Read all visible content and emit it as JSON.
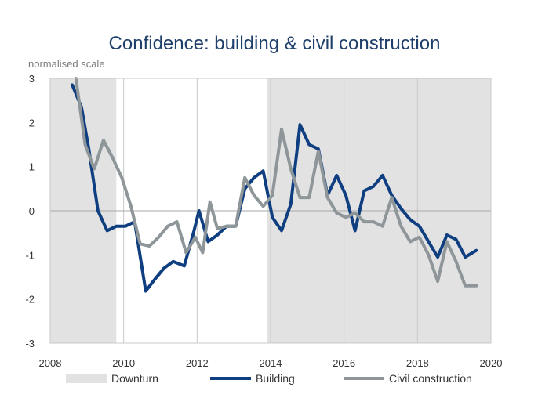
{
  "chart_data": {
    "type": "line",
    "title": "Confidence: building & civil construction",
    "ylabel": "normalised scale",
    "xlim": [
      2008,
      2020
    ],
    "ylim": [
      -3,
      3
    ],
    "x_ticks": [
      "2008",
      "2010",
      "2012",
      "2014",
      "2016",
      "2018",
      "2020"
    ],
    "y_ticks": [
      "3",
      "2",
      "1",
      "0",
      "-1",
      "-2",
      "-3"
    ],
    "grid": "vertical",
    "legend_position": "bottom",
    "shaded_regions": {
      "name": "Downturn",
      "color": "#e2e2e2",
      "ranges": [
        [
          2008,
          2009.8
        ],
        [
          2013.9,
          2020
        ]
      ]
    },
    "series": [
      {
        "name": "Building",
        "color": "#0f3f80",
        "points": [
          [
            2008.6,
            2.85
          ],
          [
            2008.85,
            2.35
          ],
          [
            2009.05,
            1.4
          ],
          [
            2009.3,
            0.0
          ],
          [
            2009.55,
            -0.45
          ],
          [
            2009.8,
            -0.35
          ],
          [
            2010.05,
            -0.35
          ],
          [
            2010.3,
            -0.25
          ],
          [
            2010.6,
            -1.82
          ],
          [
            2010.85,
            -1.55
          ],
          [
            2011.1,
            -1.3
          ],
          [
            2011.35,
            -1.15
          ],
          [
            2011.65,
            -1.25
          ],
          [
            2011.9,
            -0.5
          ],
          [
            2012.05,
            0.0
          ],
          [
            2012.3,
            -0.7
          ],
          [
            2012.55,
            -0.55
          ],
          [
            2012.8,
            -0.35
          ],
          [
            2013.05,
            -0.35
          ],
          [
            2013.3,
            0.5
          ],
          [
            2013.55,
            0.75
          ],
          [
            2013.8,
            0.9
          ],
          [
            2014.05,
            -0.15
          ],
          [
            2014.3,
            -0.45
          ],
          [
            2014.55,
            0.15
          ],
          [
            2014.8,
            1.95
          ],
          [
            2015.05,
            1.5
          ],
          [
            2015.3,
            1.4
          ],
          [
            2015.55,
            0.35
          ],
          [
            2015.8,
            0.8
          ],
          [
            2016.05,
            0.35
          ],
          [
            2016.3,
            -0.45
          ],
          [
            2016.55,
            0.45
          ],
          [
            2016.8,
            0.55
          ],
          [
            2017.05,
            0.8
          ],
          [
            2017.3,
            0.35
          ],
          [
            2017.55,
            0.05
          ],
          [
            2017.8,
            -0.2
          ],
          [
            2018.05,
            -0.35
          ],
          [
            2018.3,
            -0.7
          ],
          [
            2018.55,
            -1.05
          ],
          [
            2018.8,
            -0.55
          ],
          [
            2019.05,
            -0.65
          ],
          [
            2019.3,
            -1.05
          ],
          [
            2019.6,
            -0.9
          ]
        ]
      },
      {
        "name": "Civil construction",
        "color": "#8e9699",
        "points": [
          [
            2008.7,
            3.1
          ],
          [
            2008.95,
            1.5
          ],
          [
            2009.2,
            0.95
          ],
          [
            2009.45,
            1.6
          ],
          [
            2009.7,
            1.2
          ],
          [
            2009.95,
            0.75
          ],
          [
            2010.2,
            0.1
          ],
          [
            2010.45,
            -0.75
          ],
          [
            2010.7,
            -0.8
          ],
          [
            2010.95,
            -0.6
          ],
          [
            2011.2,
            -0.35
          ],
          [
            2011.45,
            -0.25
          ],
          [
            2011.7,
            -0.95
          ],
          [
            2011.95,
            -0.6
          ],
          [
            2012.15,
            -0.95
          ],
          [
            2012.35,
            0.2
          ],
          [
            2012.55,
            -0.4
          ],
          [
            2012.8,
            -0.35
          ],
          [
            2013.05,
            -0.35
          ],
          [
            2013.3,
            0.75
          ],
          [
            2013.55,
            0.35
          ],
          [
            2013.8,
            0.1
          ],
          [
            2014.05,
            0.35
          ],
          [
            2014.3,
            1.85
          ],
          [
            2014.55,
            0.95
          ],
          [
            2014.8,
            0.3
          ],
          [
            2015.05,
            0.3
          ],
          [
            2015.3,
            1.35
          ],
          [
            2015.55,
            0.3
          ],
          [
            2015.8,
            -0.05
          ],
          [
            2016.05,
            -0.15
          ],
          [
            2016.3,
            -0.05
          ],
          [
            2016.55,
            -0.25
          ],
          [
            2016.8,
            -0.25
          ],
          [
            2017.05,
            -0.35
          ],
          [
            2017.3,
            0.3
          ],
          [
            2017.55,
            -0.35
          ],
          [
            2017.8,
            -0.7
          ],
          [
            2018.05,
            -0.6
          ],
          [
            2018.3,
            -1.0
          ],
          [
            2018.55,
            -1.6
          ],
          [
            2018.8,
            -0.7
          ],
          [
            2019.05,
            -1.15
          ],
          [
            2019.3,
            -1.7
          ],
          [
            2019.6,
            -1.7
          ]
        ]
      }
    ]
  }
}
